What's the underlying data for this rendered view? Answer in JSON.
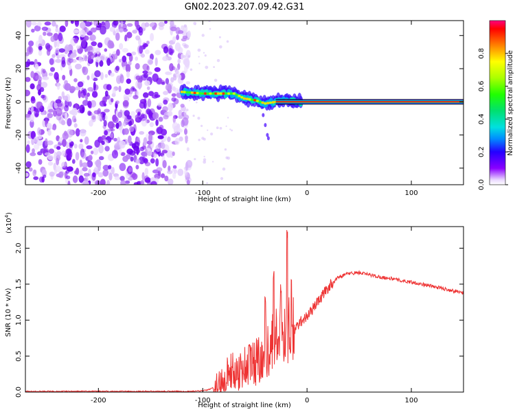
{
  "title": "GN02.2023.207.09.42.G31",
  "chart_data": [
    {
      "type": "heatmap",
      "name": "spectrogram",
      "xlabel": "Height of straight line (km)",
      "ylabel": "Frequency (Hz)",
      "xlim": [
        -270,
        150
      ],
      "ylim": [
        -50,
        49
      ],
      "xticks": [
        "-200",
        "-100",
        "0",
        "100"
      ],
      "xtick_values": [
        -200,
        -100,
        0,
        100
      ],
      "yticks": [
        "-40",
        "-20",
        "0",
        "20",
        "40"
      ],
      "ytick_values": [
        -40,
        -20,
        0,
        20,
        40
      ],
      "colorbar": {
        "label": "Normalized spectral amplitude",
        "range": [
          0,
          1
        ],
        "ticks": [
          "0.0",
          "0.2",
          "0.4",
          "0.6",
          "0.8"
        ],
        "tick_values": [
          0.0,
          0.2,
          0.4,
          0.6,
          0.8
        ]
      },
      "features": {
        "noise_region_km": [
          -270,
          -118
        ],
        "signal_band_start_km": -120,
        "signal_center_hz": [
          [
            -120,
            6
          ],
          [
            -100,
            5
          ],
          [
            -80,
            5
          ],
          [
            -70,
            5
          ],
          [
            -60,
            2
          ],
          [
            -50,
            1
          ],
          [
            -40,
            -1
          ],
          [
            -30,
            0
          ],
          [
            -20,
            1
          ],
          [
            -10,
            0
          ],
          [
            0,
            0
          ],
          [
            150,
            0
          ]
        ]
      }
    },
    {
      "type": "line",
      "name": "snr",
      "xlabel": "Height of straight line (km)",
      "ylabel": "SNR (10 * v/v)",
      "yscale_label": "(x10",
      "yscale_exp": "4",
      "yscale_close": ")",
      "xlim": [
        -270,
        150
      ],
      "ylim": [
        0,
        2.3
      ],
      "xticks": [
        "-200",
        "-100",
        "0",
        "100"
      ],
      "xtick_values": [
        -200,
        -100,
        0,
        100
      ],
      "yticks": [
        "0.0",
        "0.5",
        "1.0",
        "1.5",
        "2.0"
      ],
      "ytick_values": [
        0.0,
        0.5,
        1.0,
        1.5,
        2.0
      ],
      "color": "#ee3333",
      "series": [
        {
          "name": "SNR",
          "x": [
            -270,
            -200,
            -150,
            -110,
            -100,
            -95,
            -90,
            -85,
            -80,
            -75,
            -70,
            -65,
            -60,
            -55,
            -50,
            -45,
            -40,
            -35,
            -30,
            -25,
            -20,
            -15,
            -10,
            -5,
            0,
            5,
            10,
            20,
            30,
            40,
            50,
            60,
            70,
            80,
            90,
            100,
            110,
            120,
            130,
            140,
            150
          ],
          "values": [
            0.01,
            0.01,
            0.01,
            0.01,
            0.02,
            0.03,
            0.06,
            0.1,
            0.2,
            0.3,
            0.28,
            0.3,
            0.35,
            0.4,
            0.42,
            0.5,
            0.55,
            0.65,
            0.75,
            0.8,
            0.9,
            0.75,
            0.9,
            1.0,
            1.05,
            1.15,
            1.25,
            1.45,
            1.6,
            1.65,
            1.66,
            1.63,
            1.6,
            1.58,
            1.55,
            1.53,
            1.5,
            1.47,
            1.44,
            1.41,
            1.38
          ]
        }
      ],
      "spikes": [
        {
          "x": -40,
          "value": 1.35
        },
        {
          "x": -32,
          "value": 1.7
        },
        {
          "x": -25,
          "value": 1.5
        },
        {
          "x": -19,
          "value": 2.3
        },
        {
          "x": -15,
          "value": 1.65
        }
      ]
    }
  ]
}
